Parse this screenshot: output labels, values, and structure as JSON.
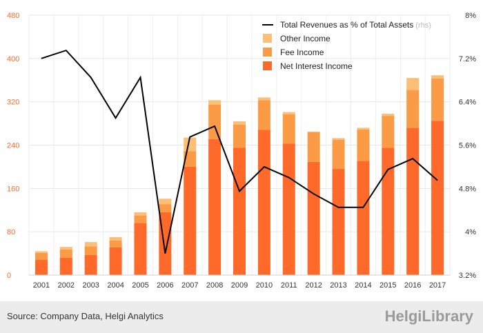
{
  "chart_data": {
    "type": "bar",
    "categories": [
      "2001",
      "2002",
      "2003",
      "2004",
      "2005",
      "2006",
      "2007",
      "2008",
      "2009",
      "2010",
      "2011",
      "2012",
      "2013",
      "2014",
      "2015",
      "2016",
      "2017"
    ],
    "series": [
      {
        "name": "Net Interest Income",
        "kind": "bar",
        "axis": "left",
        "color": "#ff6a2a",
        "values": [
          28,
          32,
          37,
          51,
          96,
          116,
          200,
          251,
          235,
          268,
          243,
          209,
          196,
          211,
          235,
          272,
          285
        ]
      },
      {
        "name": "Fee Income",
        "kind": "bar",
        "axis": "left",
        "color": "#fc9b46",
        "values": [
          13,
          15,
          16,
          13,
          14,
          15,
          29,
          64,
          43,
          55,
          54,
          55,
          54,
          58,
          59,
          70,
          78
        ]
      },
      {
        "name": "Other Income",
        "kind": "bar",
        "axis": "left",
        "color": "#fdbf76",
        "values": [
          3,
          5,
          8,
          6,
          6,
          10,
          25,
          8,
          6,
          5,
          4,
          1,
          3,
          3,
          4,
          22,
          6
        ]
      },
      {
        "name": "Total Revenues as % of Total Assets",
        "kind": "line",
        "axis": "right",
        "color": "#000000",
        "values": [
          7.2,
          7.35,
          6.85,
          6.1,
          6.85,
          3.6,
          5.75,
          5.95,
          4.75,
          5.2,
          5.0,
          4.7,
          4.45,
          4.45,
          5.15,
          5.35,
          4.95
        ]
      }
    ],
    "ylim": [
      0,
      480
    ],
    "y_ticks": [
      "0",
      "80",
      "160",
      "240",
      "320",
      "400",
      "480"
    ],
    "y2lim": [
      3.2,
      8.0
    ],
    "y2_ticks": [
      "3.2%",
      "4%",
      "4.8%",
      "5.6%",
      "6.4%",
      "7.2%",
      "8%"
    ],
    "legend": [
      "Total Revenues as % of Total Assets",
      "Other Income",
      "Fee Income",
      "Net Interest Income"
    ],
    "legend_note": "(rhs)",
    "legend_position": "top-right",
    "grid": true
  },
  "footer": {
    "source": "Source: Company Data, Helgi Analytics",
    "brand": "HelgiLibrary"
  }
}
